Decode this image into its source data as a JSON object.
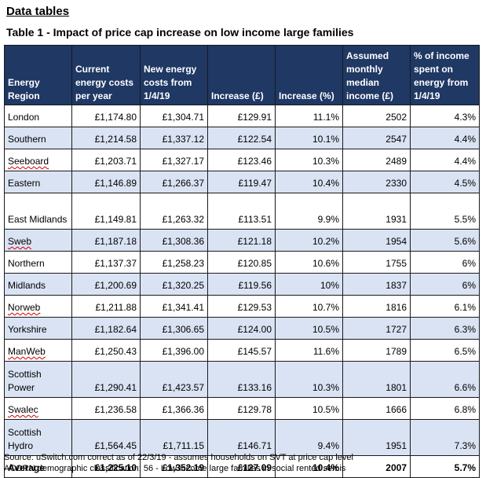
{
  "section_heading": "Data tables",
  "table_title": "Table 1 - Impact of price cap increase on low income large families",
  "columns": [
    "Energy Region",
    "Current energy costs per year",
    "New energy costs from 1/4/19",
    "Increase (£)",
    "Increase (%)",
    "Assumed monthly median income (£)",
    "% of income spent on energy from 1/4/19"
  ],
  "rows": [
    {
      "region": "London",
      "current": "£1,174.80",
      "new": "£1,304.71",
      "increase": "£129.91",
      "increase_pct": "11.1%",
      "income": "2502",
      "pct_income": "4.3%"
    },
    {
      "region": "Southern",
      "current": "£1,214.58",
      "new": "£1,337.12",
      "increase": "£122.54",
      "increase_pct": "10.1%",
      "income": "2547",
      "pct_income": "4.4%"
    },
    {
      "region": "Seeboard",
      "current": "£1,203.71",
      "new": "£1,327.17",
      "increase": "£123.46",
      "increase_pct": "10.3%",
      "income": "2489",
      "pct_income": "4.4%"
    },
    {
      "region": "Eastern",
      "current": "£1,146.89",
      "new": "£1,266.37",
      "increase": "£119.47",
      "increase_pct": "10.4%",
      "income": "2330",
      "pct_income": "4.5%"
    },
    {
      "region": "East Midlands",
      "current": "£1,149.81",
      "new": "£1,263.32",
      "increase": "£113.51",
      "increase_pct": "9.9%",
      "income": "1931",
      "pct_income": "5.5%"
    },
    {
      "region": "Sweb",
      "current": "£1,187.18",
      "new": "£1,308.36",
      "increase": "£121.18",
      "increase_pct": "10.2%",
      "income": "1954",
      "pct_income": "5.6%"
    },
    {
      "region": "Northern",
      "current": "£1,137.37",
      "new": "£1,258.23",
      "increase": "£120.85",
      "increase_pct": "10.6%",
      "income": "1755",
      "pct_income": "6%"
    },
    {
      "region": "Midlands",
      "current": "£1,200.69",
      "new": "£1,320.25",
      "increase": "£119.56",
      "increase_pct": "10%",
      "income": "1837",
      "pct_income": "6%"
    },
    {
      "region": "Norweb",
      "current": "£1,211.88",
      "new": "£1,341.41",
      "increase": "£129.53",
      "increase_pct": "10.7%",
      "income": "1816",
      "pct_income": "6.1%"
    },
    {
      "region": "Yorkshire",
      "current": "£1,182.64",
      "new": "£1,306.65",
      "increase": "£124.00",
      "increase_pct": "10.5%",
      "income": "1727",
      "pct_income": "6.3%"
    },
    {
      "region": "ManWeb",
      "current": "£1,250.43",
      "new": "£1,396.00",
      "increase": "£145.57",
      "increase_pct": "11.6%",
      "income": "1789",
      "pct_income": "6.5%"
    },
    {
      "region": "Scottish Power",
      "current": "£1,290.41",
      "new": "£1,423.57",
      "increase": "£133.16",
      "increase_pct": "10.3%",
      "income": "1801",
      "pct_income": "6.6%"
    },
    {
      "region": "Swalec",
      "current": "£1,236.58",
      "new": "£1,366.36",
      "increase": "£129.78",
      "increase_pct": "10.5%",
      "income": "1666",
      "pct_income": "6.8%"
    },
    {
      "region": "Scottish Hydro",
      "current": "£1,564.45",
      "new": "£1,711.15",
      "increase": "£146.71",
      "increase_pct": "9.4%",
      "income": "1951",
      "pct_income": "7.3%"
    }
  ],
  "average": {
    "region": "Average",
    "current": "£1,225.10",
    "new": "£1,352.19",
    "increase": "£127.09",
    "increase_pct": "10.4%",
    "income": "2007",
    "pct_income": "5.7%"
  },
  "footnotes": [
    "Source: uSwitch.com correct as of 22/3/19 - assumes households on SVT at price cap level",
    "ACORN demographic classification: 56 - Low income large families in social rented semis"
  ],
  "colors": {
    "header_bg": "#1f3864",
    "header_text": "#ffffff",
    "shaded_row": "#dae3f3",
    "border": "#1a1a1a",
    "spellcheck_underline": "#d00000"
  }
}
